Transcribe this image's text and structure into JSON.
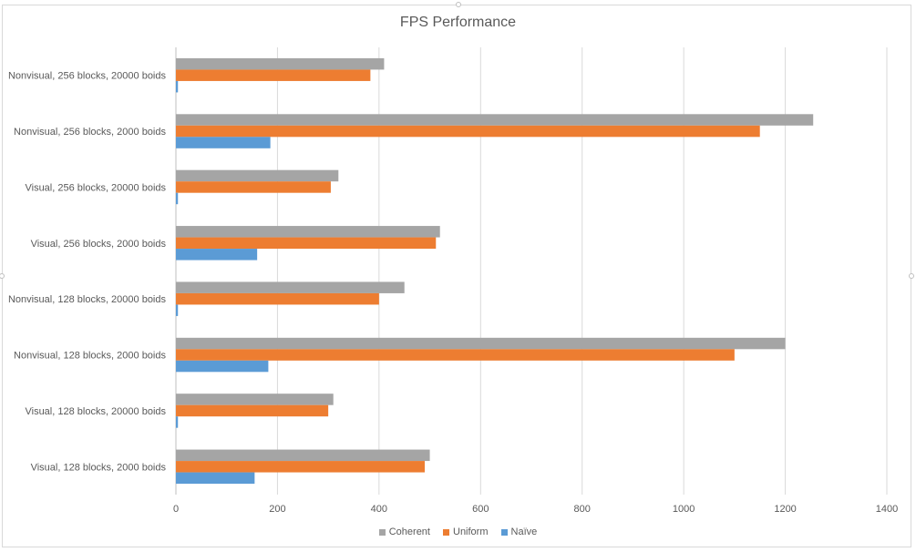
{
  "chart_data": {
    "type": "bar",
    "orientation": "horizontal",
    "title": "FPS Performance",
    "xlabel": "",
    "ylabel": "",
    "xlim": [
      0,
      1400
    ],
    "x_ticks": [
      "0",
      "200",
      "400",
      "600",
      "800",
      "1000",
      "1200",
      "1400"
    ],
    "grid": "vertical",
    "legend_position": "bottom",
    "categories": [
      "Nonvisual, 256 blocks, 20000 boids",
      "Nonvisual, 256 blocks, 2000 boids",
      "Visual, 256 blocks, 20000 boids",
      "Visual, 256 blocks, 2000 boids",
      "Nonvisual, 128 blocks, 20000 boids",
      "Nonvisual, 128 blocks, 2000 boids",
      "Visual, 128 blocks, 20000 boids",
      "Visual, 128 blocks, 2000 boids"
    ],
    "series": [
      {
        "name": "Coherent",
        "color": "#a5a5a5",
        "values": [
          410,
          1255,
          320,
          520,
          450,
          1200,
          310,
          500
        ]
      },
      {
        "name": "Uniform",
        "color": "#ed7d31",
        "values": [
          383,
          1150,
          305,
          512,
          400,
          1100,
          300,
          490
        ]
      },
      {
        "name": "Naïve",
        "color": "#5b9bd5",
        "values": [
          4,
          186,
          4,
          160,
          4,
          182,
          4,
          155
        ]
      }
    ]
  }
}
